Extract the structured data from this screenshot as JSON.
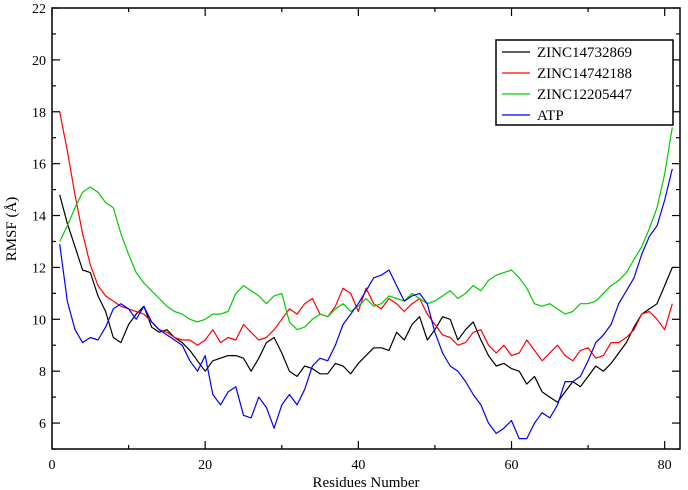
{
  "chart_data": {
    "type": "line",
    "title": "",
    "xlabel": "Residues Number",
    "ylabel": "RMSF (Å)",
    "xlim": [
      0,
      82
    ],
    "ylim": [
      5,
      22
    ],
    "xticks": [
      0,
      20,
      40,
      60,
      80
    ],
    "yticks": [
      6,
      8,
      10,
      12,
      14,
      16,
      18,
      20,
      22
    ],
    "grid": false,
    "legend_position": "top-right",
    "x": [
      1,
      2,
      3,
      4,
      5,
      6,
      7,
      8,
      9,
      10,
      11,
      12,
      13,
      14,
      15,
      16,
      17,
      18,
      19,
      20,
      21,
      22,
      23,
      24,
      25,
      26,
      27,
      28,
      29,
      30,
      31,
      32,
      33,
      34,
      35,
      36,
      37,
      38,
      39,
      40,
      41,
      42,
      43,
      44,
      45,
      46,
      47,
      48,
      49,
      50,
      51,
      52,
      53,
      54,
      55,
      56,
      57,
      58,
      59,
      60,
      61,
      62,
      63,
      64,
      65,
      66,
      67,
      68,
      69,
      70,
      71,
      72,
      73,
      74,
      75,
      76,
      77,
      78,
      79,
      80,
      81
    ],
    "series": [
      {
        "name": "ZINC14732869",
        "color": "#000000",
        "values": [
          14.8,
          13.7,
          12.8,
          11.9,
          11.8,
          10.9,
          10.3,
          9.3,
          9.1,
          9.8,
          10.2,
          10.5,
          9.7,
          9.5,
          9.6,
          9.3,
          9.1,
          8.8,
          8.4,
          8.0,
          8.4,
          8.5,
          8.6,
          8.6,
          8.5,
          8.0,
          8.5,
          9.1,
          9.3,
          8.7,
          8.0,
          7.8,
          8.2,
          8.1,
          7.9,
          7.9,
          8.3,
          8.2,
          7.9,
          8.3,
          8.6,
          8.9,
          8.9,
          8.8,
          9.5,
          9.2,
          9.8,
          10.1,
          9.2,
          9.6,
          10.1,
          10.0,
          9.2,
          9.6,
          9.9,
          9.2,
          8.6,
          8.2,
          8.3,
          8.1,
          8.0,
          7.5,
          7.8,
          7.2,
          7.0,
          6.8,
          7.2,
          7.6,
          7.4,
          7.8,
          8.2,
          8.0,
          8.3,
          8.7,
          9.1,
          9.7,
          10.2,
          10.4,
          10.6,
          11.3,
          12.0
        ]
      },
      {
        "name": "ZINC14742188",
        "color": "#ff0000",
        "values": [
          18.0,
          16.5,
          14.8,
          13.3,
          12.1,
          11.3,
          10.9,
          10.7,
          10.5,
          10.4,
          10.3,
          10.2,
          9.9,
          9.6,
          9.5,
          9.3,
          9.2,
          9.2,
          9.0,
          9.2,
          9.6,
          9.1,
          9.3,
          9.2,
          9.8,
          9.5,
          9.2,
          9.3,
          9.6,
          10.0,
          10.4,
          10.2,
          10.6,
          10.8,
          10.2,
          10.1,
          10.5,
          11.2,
          11.0,
          10.3,
          11.2,
          10.6,
          10.4,
          10.8,
          10.6,
          10.3,
          10.6,
          10.8,
          10.2,
          9.8,
          9.4,
          9.3,
          9.0,
          9.1,
          9.5,
          9.6,
          9.0,
          8.7,
          9.0,
          8.6,
          8.7,
          9.2,
          8.8,
          8.4,
          8.7,
          9.0,
          8.6,
          8.4,
          8.8,
          8.9,
          8.5,
          8.6,
          9.1,
          9.1,
          9.3,
          9.6,
          10.2,
          10.3,
          10.0,
          9.6,
          10.6
        ]
      },
      {
        "name": "ZINC12205447",
        "color": "#00cc00",
        "values": [
          13.0,
          13.6,
          14.3,
          14.9,
          15.1,
          14.9,
          14.5,
          14.3,
          13.3,
          12.5,
          11.8,
          11.4,
          11.1,
          10.8,
          10.5,
          10.3,
          10.2,
          10.0,
          9.9,
          10.0,
          10.2,
          10.2,
          10.3,
          11.0,
          11.3,
          11.1,
          10.9,
          10.6,
          10.9,
          11.0,
          9.9,
          9.6,
          9.7,
          10.0,
          10.2,
          10.1,
          10.4,
          10.6,
          10.3,
          10.5,
          10.8,
          10.5,
          10.6,
          10.9,
          10.8,
          10.7,
          11.0,
          10.8,
          10.6,
          10.7,
          10.9,
          11.1,
          10.8,
          11.0,
          11.3,
          11.1,
          11.5,
          11.7,
          11.8,
          11.9,
          11.6,
          11.2,
          10.6,
          10.5,
          10.6,
          10.4,
          10.2,
          10.3,
          10.6,
          10.6,
          10.7,
          11.0,
          11.3,
          11.5,
          11.8,
          12.3,
          12.8,
          13.5,
          14.3,
          15.6,
          17.4
        ]
      },
      {
        "name": "ATP",
        "color": "#0000ff",
        "values": [
          12.9,
          10.7,
          9.6,
          9.1,
          9.3,
          9.2,
          9.7,
          10.4,
          10.6,
          10.4,
          10.0,
          10.5,
          9.9,
          9.6,
          9.4,
          9.2,
          9.0,
          8.4,
          8.0,
          8.6,
          7.1,
          6.7,
          7.2,
          7.4,
          6.3,
          6.2,
          7.0,
          6.6,
          5.8,
          6.7,
          7.1,
          6.7,
          7.3,
          8.2,
          8.5,
          8.4,
          9.0,
          9.8,
          10.2,
          10.6,
          11.1,
          11.6,
          11.7,
          11.9,
          11.3,
          10.7,
          10.9,
          11.0,
          10.6,
          9.5,
          8.7,
          8.2,
          8.0,
          7.6,
          7.1,
          6.7,
          6.0,
          5.6,
          5.8,
          6.1,
          5.4,
          5.4,
          6.0,
          6.4,
          6.2,
          6.7,
          7.6,
          7.6,
          7.8,
          8.4,
          9.1,
          9.4,
          9.8,
          10.6,
          11.1,
          11.6,
          12.5,
          13.2,
          13.6,
          14.6,
          15.8
        ]
      }
    ]
  }
}
